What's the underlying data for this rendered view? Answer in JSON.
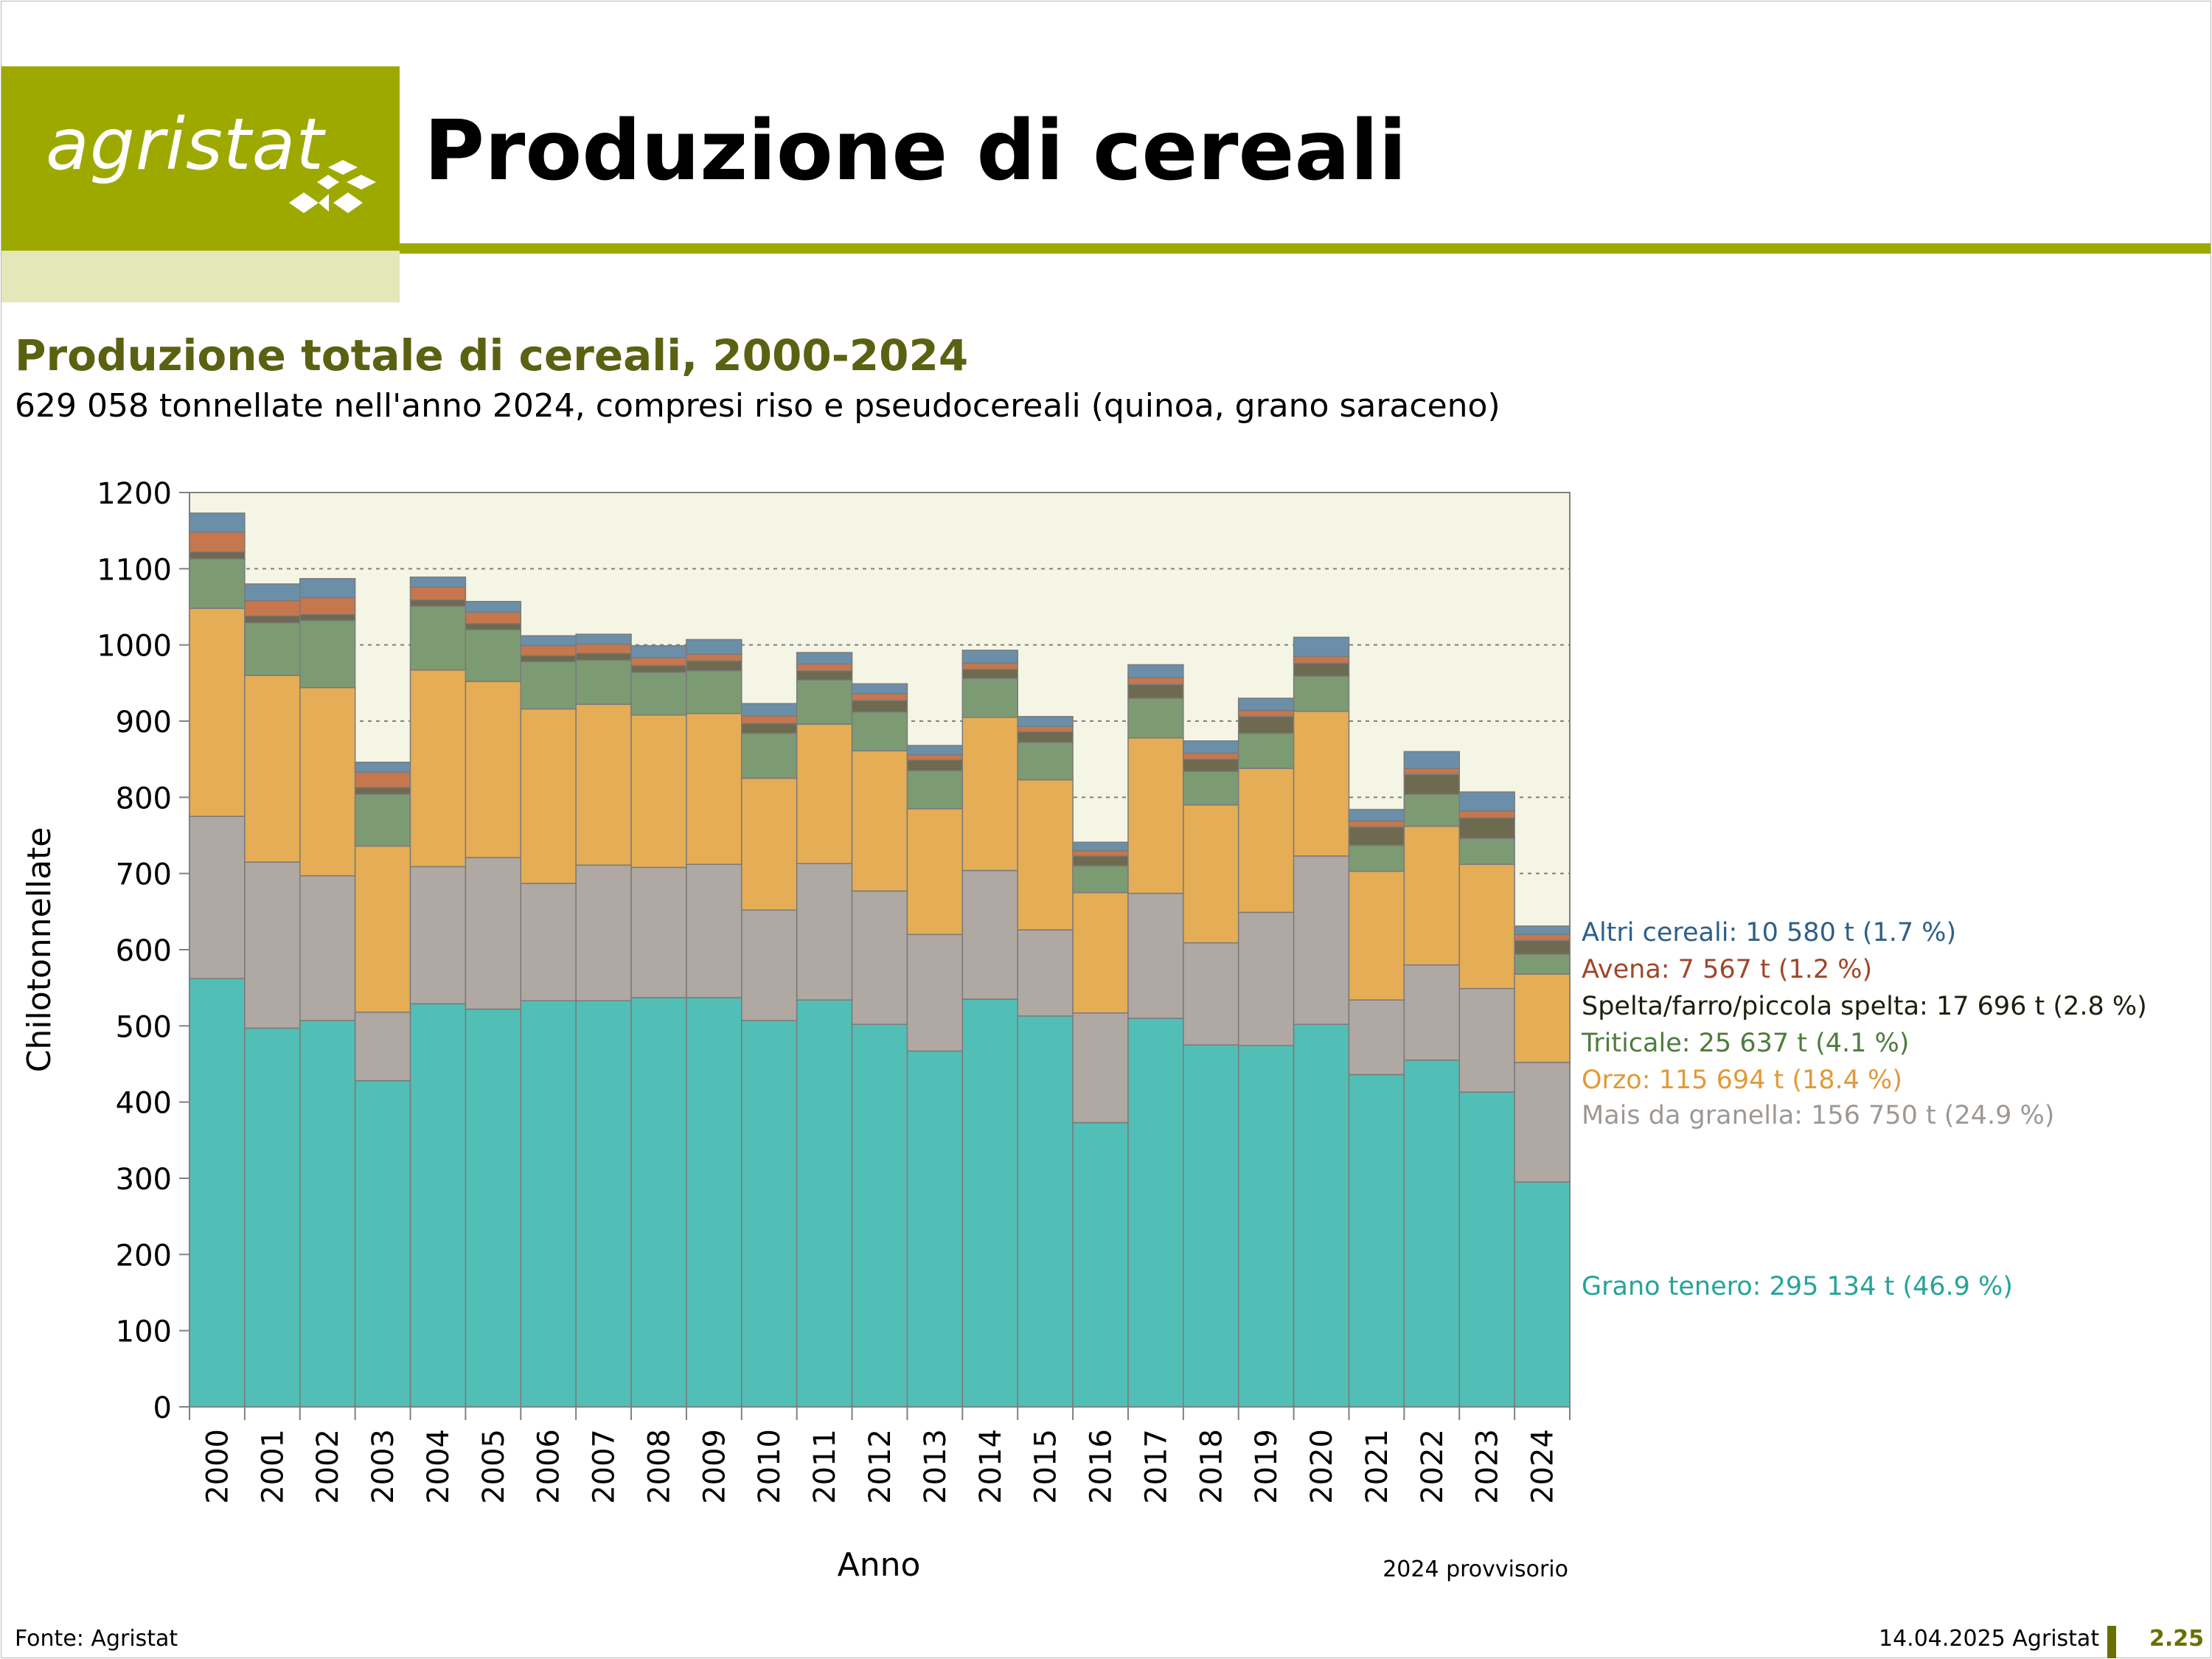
{
  "header": {
    "logo_text": "agristat",
    "page_title": "Produzione di cereali"
  },
  "footer": {
    "source": "Fonte: Agristat",
    "date": "14.04.2025 Agristat",
    "page": "2.25"
  },
  "chart_data": {
    "type": "bar",
    "stacked": true,
    "title": "Produzione totale di cereali, 2000-2024",
    "subtitle": "629 058 tonnellate nell'anno 2024, compresi riso e pseudocereali (quinoa, grano saraceno)",
    "xlabel": "Anno",
    "ylabel": "Chilotonnellate",
    "ylim": [
      0,
      1200
    ],
    "yticks": [
      0,
      100,
      200,
      300,
      400,
      500,
      600,
      700,
      800,
      900,
      1000,
      1100,
      1200
    ],
    "grid": true,
    "note": "2024 provvisorio",
    "categories": [
      "2000",
      "2001",
      "2002",
      "2003",
      "2004",
      "2005",
      "2006",
      "2007",
      "2008",
      "2009",
      "2010",
      "2011",
      "2012",
      "2013",
      "2014",
      "2015",
      "2016",
      "2017",
      "2018",
      "2019",
      "2020",
      "2021",
      "2022",
      "2023",
      "2024"
    ],
    "series": [
      {
        "name": "Grano tenero",
        "color": "#52bfb6",
        "values": [
          562,
          497,
          507,
          428,
          529,
          522,
          533,
          533,
          537,
          537,
          507,
          534,
          502,
          467,
          535,
          513,
          373,
          510,
          475,
          474,
          502,
          436,
          455,
          413,
          295
        ]
      },
      {
        "name": "Mais da granella",
        "color": "#b0a8a2",
        "values": [
          213,
          218,
          190,
          90,
          180,
          199,
          154,
          178,
          171,
          175,
          145,
          179,
          175,
          153,
          169,
          113,
          144,
          164,
          134,
          175,
          221,
          98,
          125,
          136,
          157
        ]
      },
      {
        "name": "Orzo",
        "color": "#e5ad55",
        "values": [
          273,
          245,
          247,
          218,
          258,
          231,
          229,
          211,
          200,
          198,
          173,
          183,
          184,
          165,
          201,
          197,
          158,
          204,
          181,
          189,
          190,
          169,
          182,
          163,
          116
        ]
      },
      {
        "name": "Triticale",
        "color": "#7c9b73",
        "values": [
          65,
          69,
          88,
          68,
          84,
          68,
          62,
          58,
          56,
          56,
          59,
          58,
          51,
          50,
          51,
          49,
          35,
          52,
          44,
          46,
          46,
          34,
          42,
          34,
          26
        ]
      },
      {
        "name": "Spelta/farro/piccola spelta",
        "color": "#6d6a50",
        "values": [
          9,
          9,
          8,
          9,
          8,
          8,
          8,
          9,
          9,
          13,
          13,
          12,
          15,
          14,
          12,
          14,
          13,
          18,
          16,
          22,
          17,
          24,
          26,
          27,
          18
        ]
      },
      {
        "name": "Avena",
        "color": "#c6774d",
        "values": [
          26,
          20,
          22,
          20,
          17,
          15,
          13,
          12,
          10,
          9,
          10,
          9,
          9,
          7,
          8,
          7,
          7,
          9,
          8,
          8,
          9,
          8,
          8,
          9,
          8
        ]
      },
      {
        "name": "Altri cereali",
        "color": "#6b8fa9",
        "values": [
          25,
          22,
          25,
          13,
          13,
          14,
          13,
          13,
          16,
          19,
          16,
          15,
          13,
          12,
          17,
          13,
          11,
          17,
          16,
          16,
          25,
          15,
          22,
          25,
          11
        ]
      }
    ],
    "legend": [
      {
        "label": "Altri cereali: 10 580 t (1.7 %)",
        "color": "#2e5f8a",
        "value": 624
      },
      {
        "label": "Avena: 7 567 t (1.2 %)",
        "color": "#a0462a",
        "value": 615
      },
      {
        "label": "Spelta/farro/piccola spelta: 17 696 t (2.8 %)",
        "color": "#1e1e10",
        "value": 602
      },
      {
        "label": "Triticale: 25 637 t (4.1 %)",
        "color": "#4d7c3d",
        "value": 580
      },
      {
        "label": "Orzo: 115 694 t (18.4 %)",
        "color": "#e09a38",
        "value": 511
      },
      {
        "label": "Mais da granella: 156 750 t (24.9 %)",
        "color": "#9e9894",
        "value": 374
      },
      {
        "label": "Grano tenero: 295 134 t (46.9 %)",
        "color": "#25a49a",
        "value": 148
      }
    ],
    "legend_placement": "right"
  }
}
